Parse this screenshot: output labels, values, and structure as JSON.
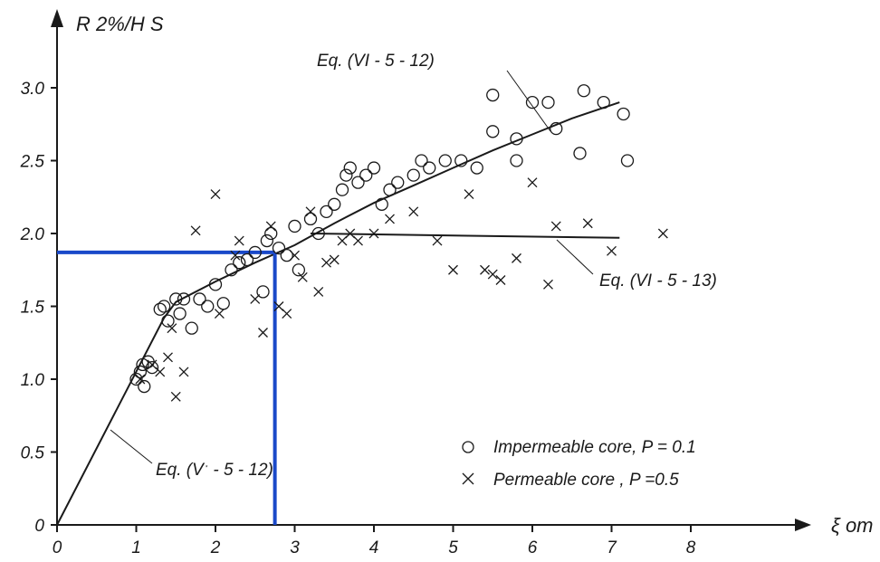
{
  "chart_data": {
    "type": "scatter",
    "title": "",
    "ylabel": "R 2%/H S",
    "xlabel": "ξ om",
    "xlim": [
      0,
      9.2
    ],
    "ylim": [
      0,
      3.3
    ],
    "x_ticks": [
      "0",
      "1",
      "2",
      "3",
      "4",
      "5",
      "6",
      "7",
      "8"
    ],
    "y_ticks": [
      "0",
      "0.5",
      "1.0",
      "1.5",
      "2.0",
      "2.5",
      "3.0"
    ],
    "grid": false,
    "legend_position": "bottom-right",
    "legend": [
      {
        "symbol": "circle",
        "label": "Impermeable core, P = 0.1"
      },
      {
        "symbol": "cross",
        "label": "Permeable core , P =0.5"
      }
    ],
    "annotations": [
      {
        "label": "Eq. (VI - 5 - 12)",
        "curve": "impermeable"
      },
      {
        "label": "Eq. (VI - 5 - 13)",
        "curve": "permeable"
      },
      {
        "label": "Eq. (Vˑ - 5 - 12)",
        "curve": "linear"
      }
    ],
    "lines": [
      {
        "name": "Eq. (VI - 5 - 12)",
        "x": [
          0,
          1.35,
          1.5,
          2.0,
          2.5,
          3.0,
          3.5,
          4.0,
          4.5,
          5.0,
          5.5,
          6.0,
          6.5,
          7.1
        ],
        "y": [
          0,
          1.42,
          1.53,
          1.67,
          1.8,
          1.92,
          2.07,
          2.21,
          2.33,
          2.45,
          2.57,
          2.68,
          2.79,
          2.9
        ]
      },
      {
        "name": "Eq. (VI - 5 - 13)",
        "x": [
          3.2,
          7.1
        ],
        "y": [
          2.0,
          1.97
        ]
      }
    ],
    "series": [
      {
        "name": "Impermeable core, P = 0.1",
        "marker": "circle",
        "x": [
          1.0,
          1.05,
          1.08,
          1.1,
          1.15,
          1.2,
          1.3,
          1.35,
          1.4,
          1.5,
          1.55,
          1.6,
          1.7,
          1.8,
          1.9,
          2.0,
          2.1,
          2.2,
          2.3,
          2.4,
          2.5,
          2.6,
          2.65,
          2.7,
          2.8,
          2.9,
          3.0,
          3.05,
          3.2,
          3.3,
          3.4,
          3.5,
          3.6,
          3.65,
          3.7,
          3.8,
          3.9,
          4.0,
          4.1,
          4.2,
          4.3,
          4.5,
          4.6,
          4.7,
          4.9,
          5.1,
          5.3,
          5.5,
          5.5,
          5.8,
          5.8,
          6.0,
          6.2,
          6.3,
          6.6,
          6.65,
          6.9,
          7.15,
          7.2
        ],
        "y": [
          1.0,
          1.05,
          1.1,
          0.95,
          1.12,
          1.08,
          1.48,
          1.5,
          1.4,
          1.55,
          1.45,
          1.55,
          1.35,
          1.55,
          1.5,
          1.65,
          1.52,
          1.75,
          1.8,
          1.82,
          1.87,
          1.6,
          1.95,
          2.0,
          1.9,
          1.85,
          2.05,
          1.75,
          2.1,
          2.0,
          2.15,
          2.2,
          2.3,
          2.4,
          2.45,
          2.35,
          2.4,
          2.45,
          2.2,
          2.3,
          2.35,
          2.4,
          2.5,
          2.45,
          2.5,
          2.5,
          2.45,
          2.7,
          2.95,
          2.5,
          2.65,
          2.9,
          2.9,
          2.72,
          2.55,
          2.98,
          2.9,
          2.82,
          2.5
        ]
      },
      {
        "name": "Permeable core , P =0.5",
        "marker": "cross",
        "x": [
          1.05,
          1.2,
          1.3,
          1.4,
          1.45,
          1.5,
          1.6,
          1.75,
          2.0,
          2.05,
          2.25,
          2.3,
          2.5,
          2.6,
          2.7,
          2.8,
          2.9,
          3.0,
          3.1,
          3.2,
          3.3,
          3.4,
          3.5,
          3.6,
          3.7,
          3.8,
          4.0,
          4.2,
          4.5,
          4.8,
          5.0,
          5.2,
          5.4,
          5.5,
          5.6,
          5.8,
          6.0,
          6.2,
          6.3,
          6.7,
          7.0,
          7.65
        ],
        "y": [
          1.0,
          1.1,
          1.05,
          1.15,
          1.35,
          0.88,
          1.05,
          2.02,
          2.27,
          1.45,
          1.85,
          1.95,
          1.55,
          1.32,
          2.05,
          1.5,
          1.45,
          1.85,
          1.7,
          2.15,
          1.6,
          1.8,
          1.82,
          1.95,
          2.0,
          1.95,
          2.0,
          2.1,
          2.15,
          1.95,
          1.75,
          2.27,
          1.75,
          1.72,
          1.68,
          1.83,
          2.35,
          1.65,
          2.05,
          2.07,
          1.88,
          2.0
        ]
      }
    ],
    "highlight_lines": [
      {
        "color": "#1a49c9",
        "x": [
          0,
          2.75
        ],
        "y": [
          1.87,
          1.87
        ]
      },
      {
        "color": "#1a49c9",
        "x": [
          2.75,
          2.75
        ],
        "y": [
          0,
          1.87
        ]
      }
    ]
  },
  "colors": {
    "ink": "#1a1a1a",
    "highlight": "#1a49c9"
  }
}
